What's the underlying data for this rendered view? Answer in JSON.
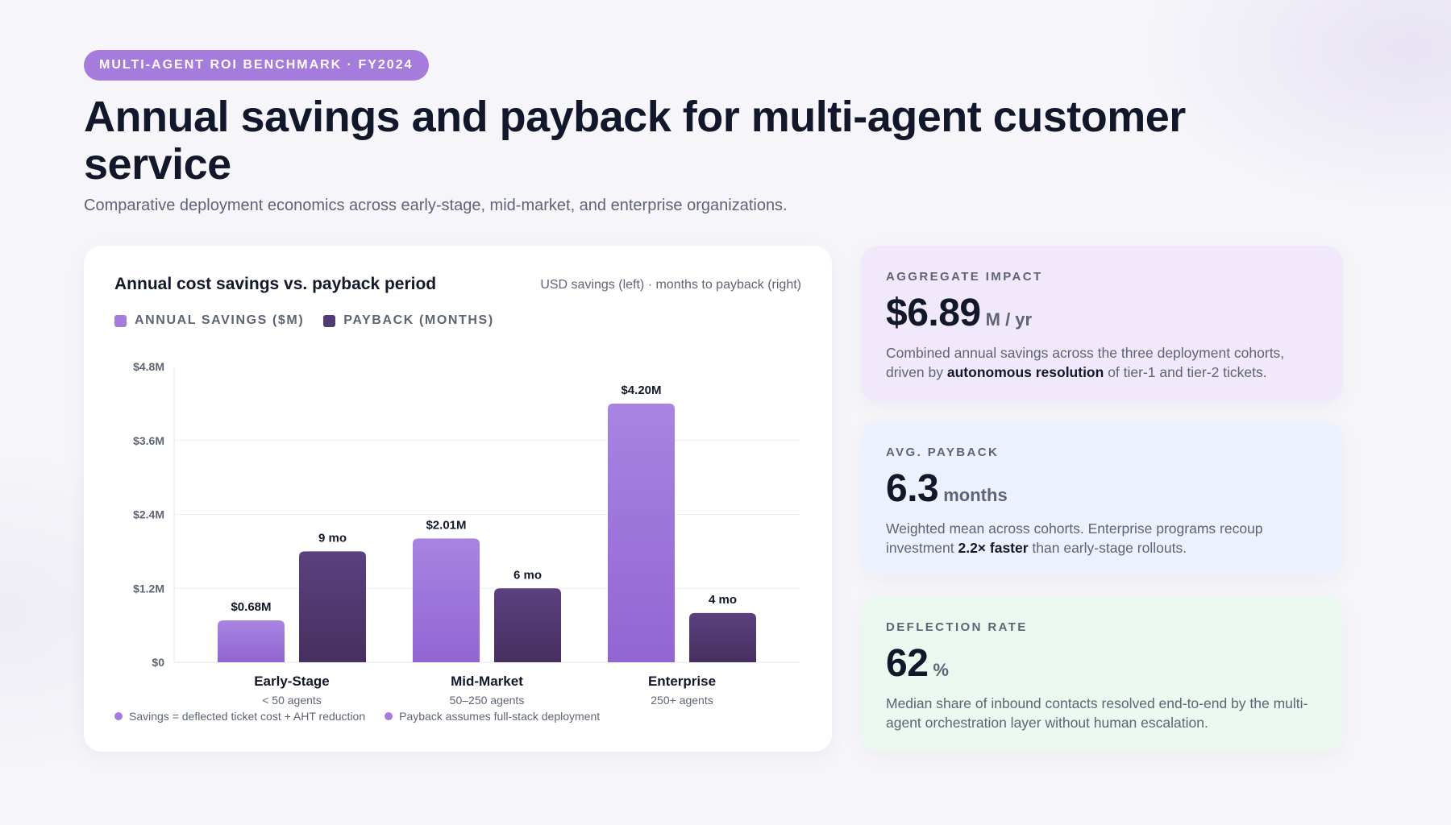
{
  "badge": "MULTI-AGENT ROI BENCHMARK · FY2024",
  "title": "Annual savings and payback for multi-agent customer service",
  "subtitle": "Comparative deployment economics across early-stage, mid-market, and enterprise organizations.",
  "chart_card": {
    "title": "Annual cost savings vs. payback period",
    "note": "USD savings (left) · months to payback (right)",
    "legend": [
      "ANNUAL SAVINGS ($M)",
      "PAYBACK (MONTHS)"
    ],
    "footnotes": [
      "Savings = deflected ticket cost + AHT reduction",
      "Payback assumes full-stack deployment"
    ]
  },
  "chart_data": {
    "type": "bar",
    "categories": [
      "Early-Stage",
      "Mid-Market",
      "Enterprise"
    ],
    "category_sublabels": [
      "< 50 agents",
      "50–250 agents",
      "250+ agents"
    ],
    "series": [
      {
        "name": "ANNUAL SAVINGS ($M)",
        "values": [
          0.68,
          2.01,
          4.2
        ],
        "data_labels": [
          "$0.68M",
          "$2.01M",
          "$4.20M"
        ],
        "color": "#a57bdc",
        "axis": "left"
      },
      {
        "name": "PAYBACK (MONTHS)",
        "values": [
          9,
          6,
          4
        ],
        "data_labels": [
          "9 mo",
          "6 mo",
          "4 mo"
        ],
        "color": "#523a74",
        "axis": "right"
      }
    ],
    "y_ticks": [
      "$0",
      "$1.2M",
      "$2.4M",
      "$3.6M",
      "$4.8M"
    ],
    "ylim": [
      0,
      4.8
    ],
    "payback_scale_max_months": 24,
    "grid": true,
    "legend_position": "top-left"
  },
  "stats": [
    {
      "label": "AGGREGATE IMPACT",
      "value": "$6.89",
      "unit": "M / yr",
      "desc_before": "Combined annual savings across the three deployment cohorts, driven by ",
      "desc_bold": "autonomous resolution",
      "desc_after": " of tier-1 and tier-2 tickets."
    },
    {
      "label": "AVG. PAYBACK",
      "value": "6.3",
      "unit": "months",
      "desc_before": "Weighted mean across cohorts. Enterprise programs recoup investment ",
      "desc_bold": "2.2× faster",
      "desc_after": " than early-stage rollouts."
    },
    {
      "label": "DEFLECTION RATE",
      "value": "62",
      "unit": "%",
      "desc_before": "Median share of inbound contacts resolved end-to-end by the multi-agent orchestration layer without human escalation.",
      "desc_bold": "",
      "desc_after": ""
    }
  ],
  "colors": {
    "accent": "#a57bdc",
    "dark_series": "#523a74",
    "title": "#12182b",
    "muted": "#5d6474"
  }
}
